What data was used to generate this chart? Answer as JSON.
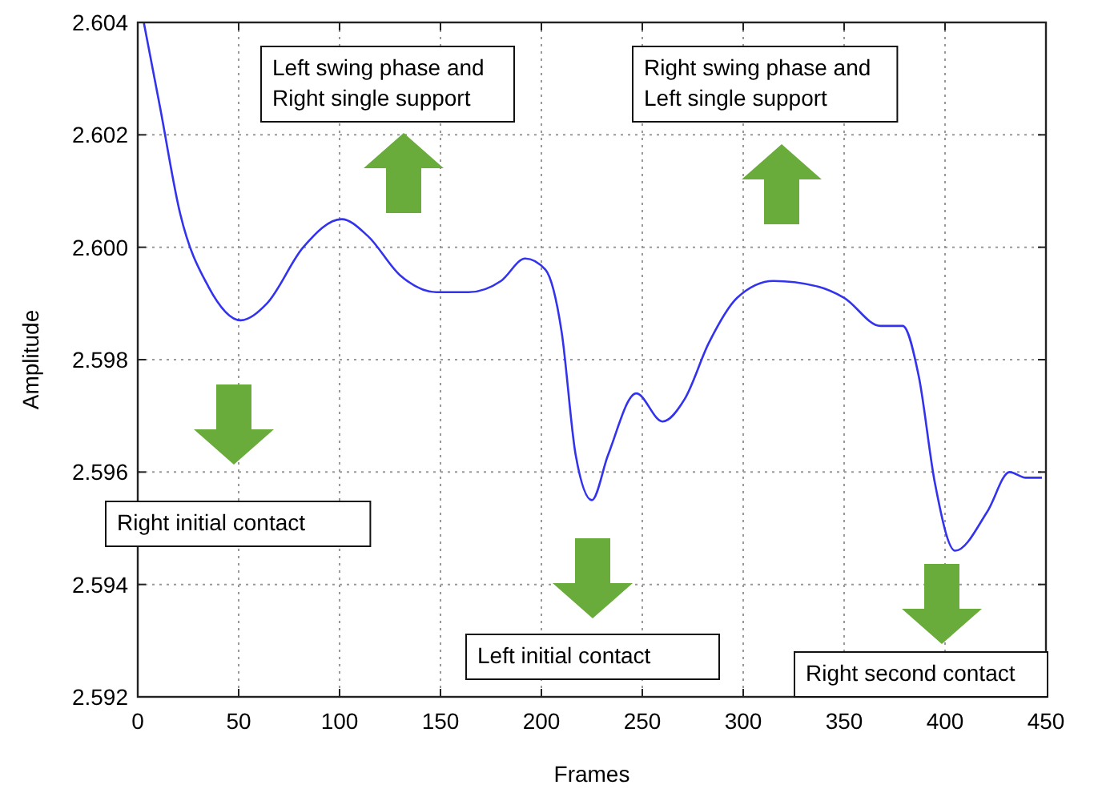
{
  "chart_data": {
    "type": "line",
    "xlabel": "Frames",
    "ylabel": "Amplitude",
    "xlim": [
      0,
      450
    ],
    "ylim": [
      2.592,
      2.604
    ],
    "xticks": [
      0,
      50,
      100,
      150,
      200,
      250,
      300,
      350,
      400,
      450
    ],
    "yticks": [
      2.592,
      2.594,
      2.596,
      2.598,
      {
        "value": 2.6,
        "label": "2.600"
      },
      2.602,
      2.604
    ],
    "grid": true,
    "line_style": "solid",
    "marker": "none",
    "series": [
      {
        "color": "#3333ee",
        "x": [
          3,
          11,
          21,
          35,
          51,
          64,
          82,
          101,
          114,
          130,
          148,
          164,
          180,
          192,
          202,
          210,
          217,
          225,
          233,
          247,
          260,
          271,
          283,
          297,
          315,
          337,
          350,
          368,
          379,
          387,
          395,
          405,
          421,
          432,
          440,
          448
        ],
        "values": [
          2.604,
          2.6025,
          2.6006,
          2.5993,
          2.5987,
          2.599,
          2.6,
          2.6005,
          2.6002,
          2.5995,
          2.5992,
          2.5992,
          2.5994,
          2.5998,
          2.5996,
          2.5985,
          2.5963,
          2.5955,
          2.5963,
          2.5974,
          2.5969,
          2.5973,
          2.5983,
          2.5991,
          2.5994,
          2.5993,
          2.5991,
          2.5986,
          2.5986,
          2.5977,
          2.5958,
          2.5946,
          2.5953,
          2.596,
          2.5959,
          2.5959
        ]
      }
    ],
    "annotations": [
      "Left swing phase and\nRight single support",
      "Right swing phase and\nLeft single support",
      "Right initial contact",
      "Left initial contact",
      "Right second contact"
    ]
  }
}
